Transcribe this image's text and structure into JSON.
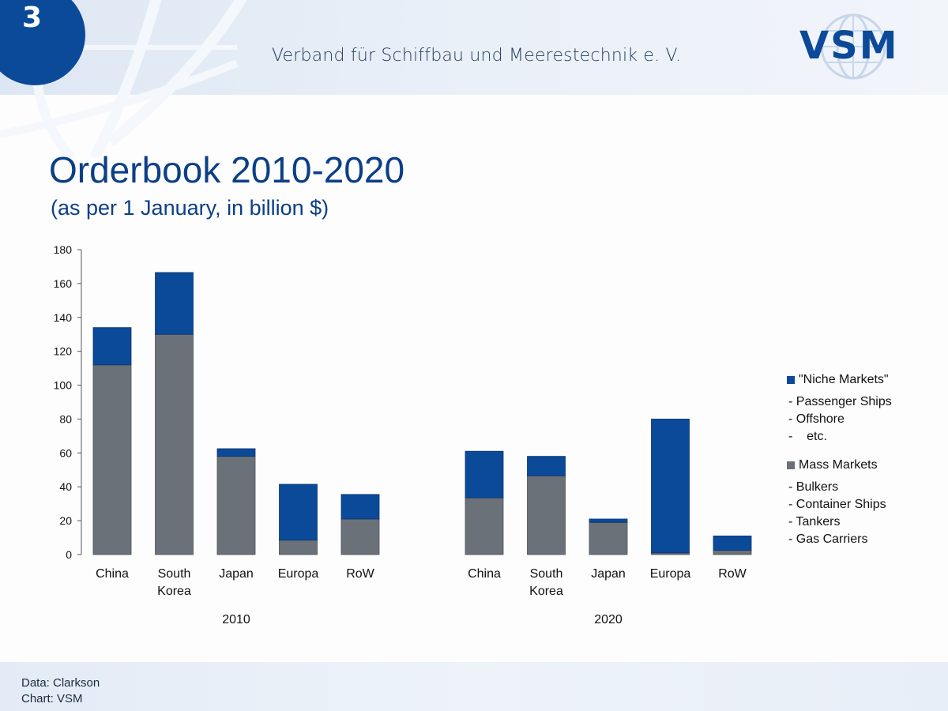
{
  "header": {
    "slide_number": "3",
    "organization": "Verband für Schiffbau und Meerestechnik e. V.",
    "logo_text": "VSM"
  },
  "title": "Orderbook 2010-2020",
  "subtitle": "(as per 1 January, in billion $)",
  "colors": {
    "niche": "#0b4a98",
    "mass": "#6b7178",
    "brand": "#0b4a98"
  },
  "legend": {
    "niche_label": "\"Niche Markets\"",
    "niche_items": [
      "- Passenger Ships",
      "- Offshore",
      "-    etc."
    ],
    "mass_label": "Mass Markets",
    "mass_items": [
      "- Bulkers",
      "- Container Ships",
      "- Tankers",
      "- Gas Carriers"
    ]
  },
  "footer": {
    "data_source": "Data: Clarkson",
    "chart_source": "Chart: VSM"
  },
  "chart_data": {
    "type": "bar",
    "stacked": true,
    "title": "Orderbook 2010-2020",
    "subtitle": "(as per 1 January, in billion $)",
    "xlabel": "",
    "ylabel": "",
    "ylim": [
      0,
      180
    ],
    "yticks": [
      0,
      20,
      40,
      60,
      80,
      100,
      120,
      140,
      160,
      180
    ],
    "grid": false,
    "legend_position": "right",
    "groups": [
      {
        "label": "2010",
        "categories": [
          "China",
          "South Korea",
          "Japan",
          "Europa",
          "RoW"
        ],
        "series": [
          {
            "name": "Mass Markets",
            "values": [
              112,
              130,
              58,
              8.5,
              21
            ]
          },
          {
            "name": "\"Niche Markets\"",
            "values": [
              22,
              36.5,
              4.5,
              33,
              14.5
            ]
          }
        ]
      },
      {
        "label": "2020",
        "categories": [
          "China",
          "South Korea",
          "Japan",
          "Europa",
          "RoW"
        ],
        "series": [
          {
            "name": "Mass Markets",
            "values": [
              33.5,
              46.5,
              19,
              1,
              2.5
            ]
          },
          {
            "name": "\"Niche Markets\"",
            "values": [
              27.5,
              11.5,
              2,
              79,
              8.5
            ]
          }
        ]
      }
    ]
  }
}
